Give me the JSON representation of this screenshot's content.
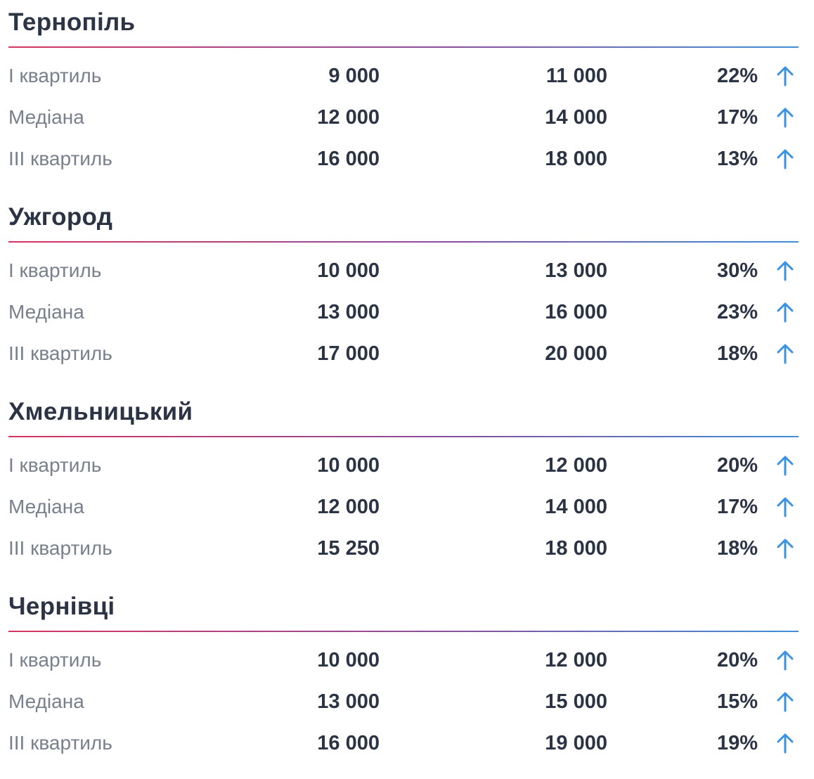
{
  "colors": {
    "title": "#2b3445",
    "label": "#77808c",
    "value": "#2b3445",
    "arrow": "#3a92e0",
    "divider_start": "#d5345f",
    "divider_end": "#3e8fd8"
  },
  "icons": {
    "trend": "arrow-up-icon"
  },
  "cities": [
    {
      "name": "Тернопіль",
      "rows": [
        {
          "label": "І квартиль",
          "before": "9 000",
          "after": "11 000",
          "change": "22%"
        },
        {
          "label": "Медіана",
          "before": "12 000",
          "after": "14 000",
          "change": "17%"
        },
        {
          "label": "ІІІ квартиль",
          "before": "16 000",
          "after": "18 000",
          "change": "13%"
        }
      ]
    },
    {
      "name": "Ужгород",
      "rows": [
        {
          "label": "І квартиль",
          "before": "10 000",
          "after": "13 000",
          "change": "30%"
        },
        {
          "label": "Медіана",
          "before": "13 000",
          "after": "16 000",
          "change": "23%"
        },
        {
          "label": "ІІІ квартиль",
          "before": "17 000",
          "after": "20 000",
          "change": "18%"
        }
      ]
    },
    {
      "name": "Хмельницький",
      "rows": [
        {
          "label": "І квартиль",
          "before": "10 000",
          "after": "12 000",
          "change": "20%"
        },
        {
          "label": "Медіана",
          "before": "12 000",
          "after": "14 000",
          "change": "17%"
        },
        {
          "label": "ІІІ квартиль",
          "before": "15 250",
          "after": "18 000",
          "change": "18%"
        }
      ]
    },
    {
      "name": "Чернівці",
      "rows": [
        {
          "label": "І квартиль",
          "before": "10 000",
          "after": "12 000",
          "change": "20%"
        },
        {
          "label": "Медіана",
          "before": "13 000",
          "after": "15 000",
          "change": "15%"
        },
        {
          "label": "ІІІ квартиль",
          "before": "16 000",
          "after": "19 000",
          "change": "19%"
        }
      ]
    }
  ]
}
